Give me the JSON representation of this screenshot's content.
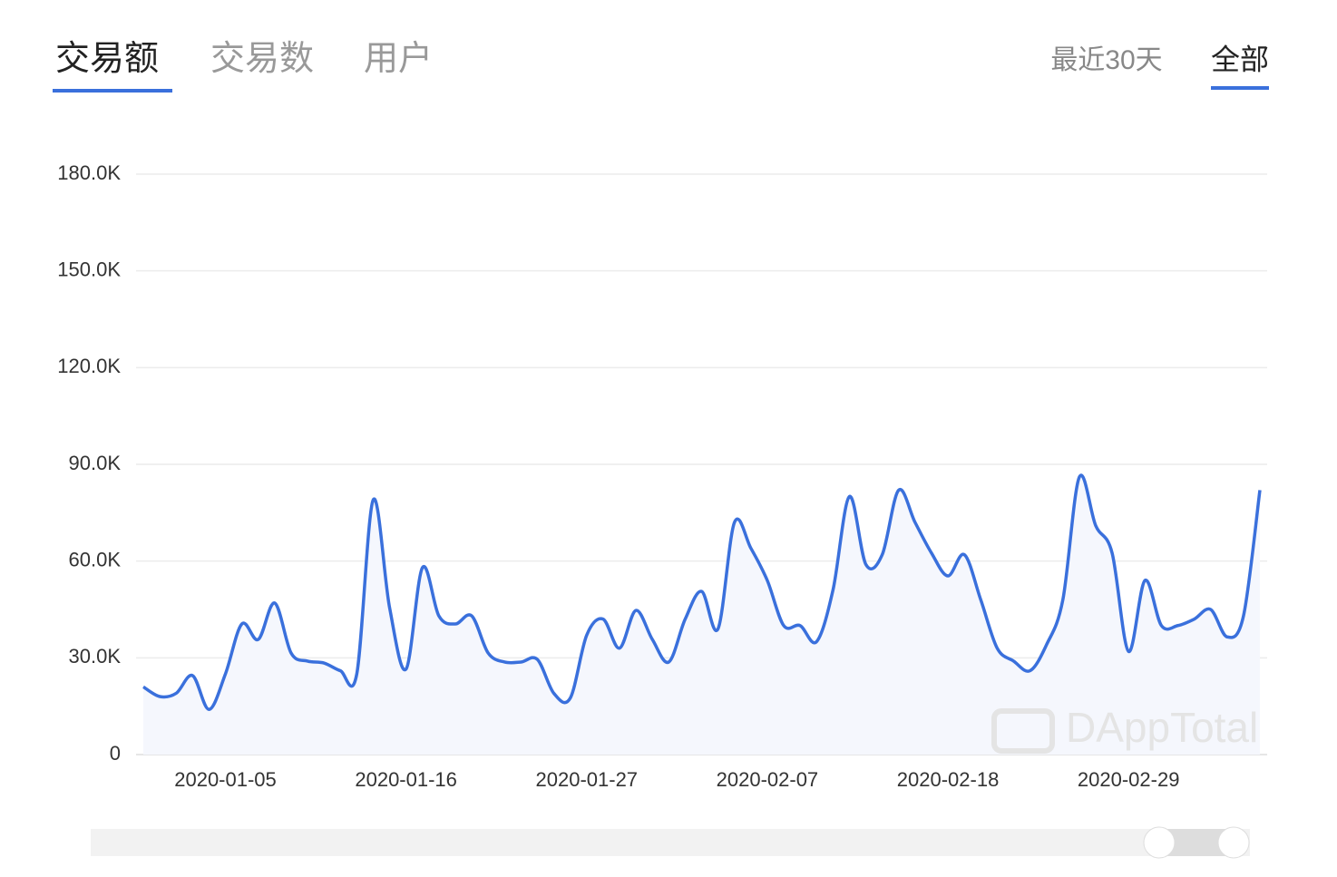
{
  "tabs": [
    "交易额",
    "交易数",
    "用户"
  ],
  "ranges": [
    "最近30天",
    "全部"
  ],
  "watermark": "DAppTotal",
  "chart_data": {
    "type": "line",
    "categories": [
      "2019-12-31",
      "2020-01-01",
      "2020-01-02",
      "2020-01-03",
      "2020-01-04",
      "2020-01-05",
      "2020-01-06",
      "2020-01-07",
      "2020-01-08",
      "2020-01-09",
      "2020-01-10",
      "2020-01-11",
      "2020-01-12",
      "2020-01-13",
      "2020-01-14",
      "2020-01-15",
      "2020-01-16",
      "2020-01-17",
      "2020-01-18",
      "2020-01-19",
      "2020-01-20",
      "2020-01-21",
      "2020-01-22",
      "2020-01-23",
      "2020-01-24",
      "2020-01-25",
      "2020-01-26",
      "2020-01-27",
      "2020-01-28",
      "2020-01-29",
      "2020-01-30",
      "2020-01-31",
      "2020-02-01",
      "2020-02-02",
      "2020-02-03",
      "2020-02-04",
      "2020-02-05",
      "2020-02-06",
      "2020-02-07",
      "2020-02-08",
      "2020-02-09",
      "2020-02-10",
      "2020-02-11",
      "2020-02-12",
      "2020-02-13",
      "2020-02-14",
      "2020-02-15",
      "2020-02-16",
      "2020-02-17",
      "2020-02-18",
      "2020-02-19",
      "2020-02-20",
      "2020-02-21",
      "2020-02-22",
      "2020-02-23",
      "2020-02-24",
      "2020-02-25",
      "2020-02-26",
      "2020-02-27",
      "2020-02-28",
      "2020-02-29",
      "2020-03-01",
      "2020-03-02",
      "2020-03-03",
      "2020-03-04",
      "2020-03-05",
      "2020-03-06",
      "2020-03-07",
      "2020-03-08"
    ],
    "xticks": [
      "2020-01-05",
      "2020-01-16",
      "2020-01-27",
      "2020-02-07",
      "2020-02-18",
      "2020-02-29"
    ],
    "series": [
      {
        "color": "#3a70dc",
        "values": [
          21000,
          18000,
          19000,
          24500,
          14000,
          25000,
          40500,
          35700,
          47000,
          31500,
          29000,
          28400,
          26000,
          25000,
          79000,
          45500,
          26500,
          58000,
          43000,
          40500,
          43000,
          31500,
          28700,
          28700,
          29500,
          19000,
          17500,
          37000,
          42000,
          33000,
          44700,
          35700,
          28700,
          42000,
          50600,
          39000,
          72000,
          64000,
          54000,
          40000,
          40000,
          35000,
          51000,
          80000,
          59000,
          62000,
          82000,
          72000,
          62500,
          55400,
          62000,
          48000,
          33000,
          29000,
          26000,
          34000,
          48000,
          86000,
          71000,
          62500,
          32000,
          54000,
          40000,
          40000,
          42000,
          45000,
          36500,
          43000,
          82000
        ]
      }
    ],
    "ylim": [
      0,
      180000
    ],
    "yticks": [
      {
        "value": 0,
        "label": "0"
      },
      {
        "value": 30000,
        "label": "30.0K"
      },
      {
        "value": 60000,
        "label": "60.0K"
      },
      {
        "value": 90000,
        "label": "90.0K"
      },
      {
        "value": 120000,
        "label": "120.0K"
      },
      {
        "value": 150000,
        "label": "150.0K"
      },
      {
        "value": 180000,
        "label": "180.0K"
      }
    ],
    "grid": true
  }
}
